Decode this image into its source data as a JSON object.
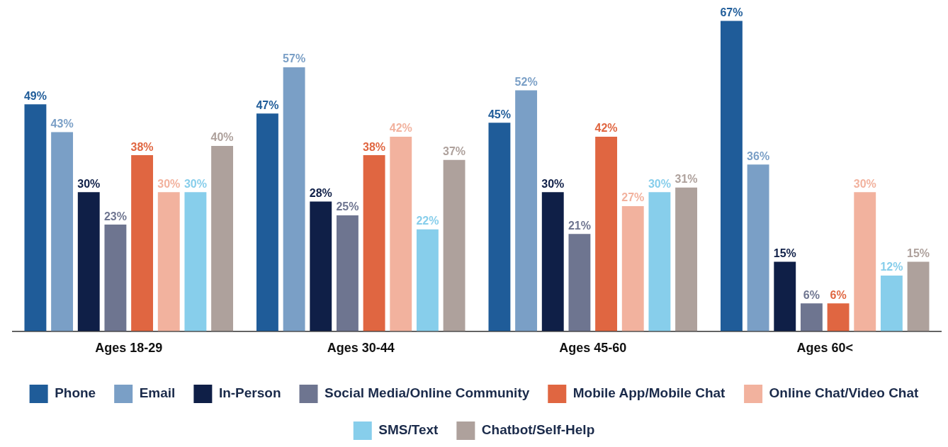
{
  "chart_data": {
    "type": "bar",
    "categories": [
      "Ages 18-29",
      "Ages 30-44",
      "Ages 45-60",
      "Ages 60<"
    ],
    "grid": false,
    "legend": "bottom",
    "series": [
      {
        "name": "Phone",
        "color": "#1f5c99",
        "values": [
          49,
          47,
          45,
          67
        ],
        "value_labels": [
          "49%",
          "47%",
          "45%",
          "67%"
        ]
      },
      {
        "name": "Email",
        "color": "#7a9fc6",
        "values": [
          43,
          57,
          52,
          36
        ],
        "value_labels": [
          "43%",
          "57%",
          "52%",
          "36%"
        ]
      },
      {
        "name": "In-Person",
        "color": "#0f1f47",
        "values": [
          30,
          28,
          30,
          15
        ],
        "value_labels": [
          "30%",
          "28%",
          "30%",
          "15%"
        ]
      },
      {
        "name": "Social Media/Online Community",
        "color": "#6e7590",
        "values": [
          23,
          25,
          21,
          6
        ],
        "value_labels": [
          "23%",
          "25%",
          "21%",
          "6%"
        ]
      },
      {
        "name": "Mobile App/Mobile Chat",
        "color": "#e06641",
        "values": [
          38,
          38,
          42,
          6
        ],
        "value_labels": [
          "38%",
          "38%",
          "42%",
          "6%"
        ]
      },
      {
        "name": "Online Chat/Video Chat",
        "color": "#f2b29e",
        "values": [
          30,
          42,
          27,
          30
        ],
        "value_labels": [
          "30%",
          "42%",
          "27%",
          "30%"
        ]
      },
      {
        "name": "SMS/Text",
        "color": "#87ceeb",
        "values": [
          30,
          22,
          30,
          12
        ],
        "value_labels": [
          "30%",
          "22%",
          "30%",
          "12%"
        ]
      },
      {
        "name": "Chatbot/Self-Help",
        "color": "#aea19c",
        "values": [
          40,
          37,
          31,
          15
        ],
        "value_labels": [
          "40%",
          "37%",
          "31%",
          "15%"
        ]
      }
    ]
  }
}
